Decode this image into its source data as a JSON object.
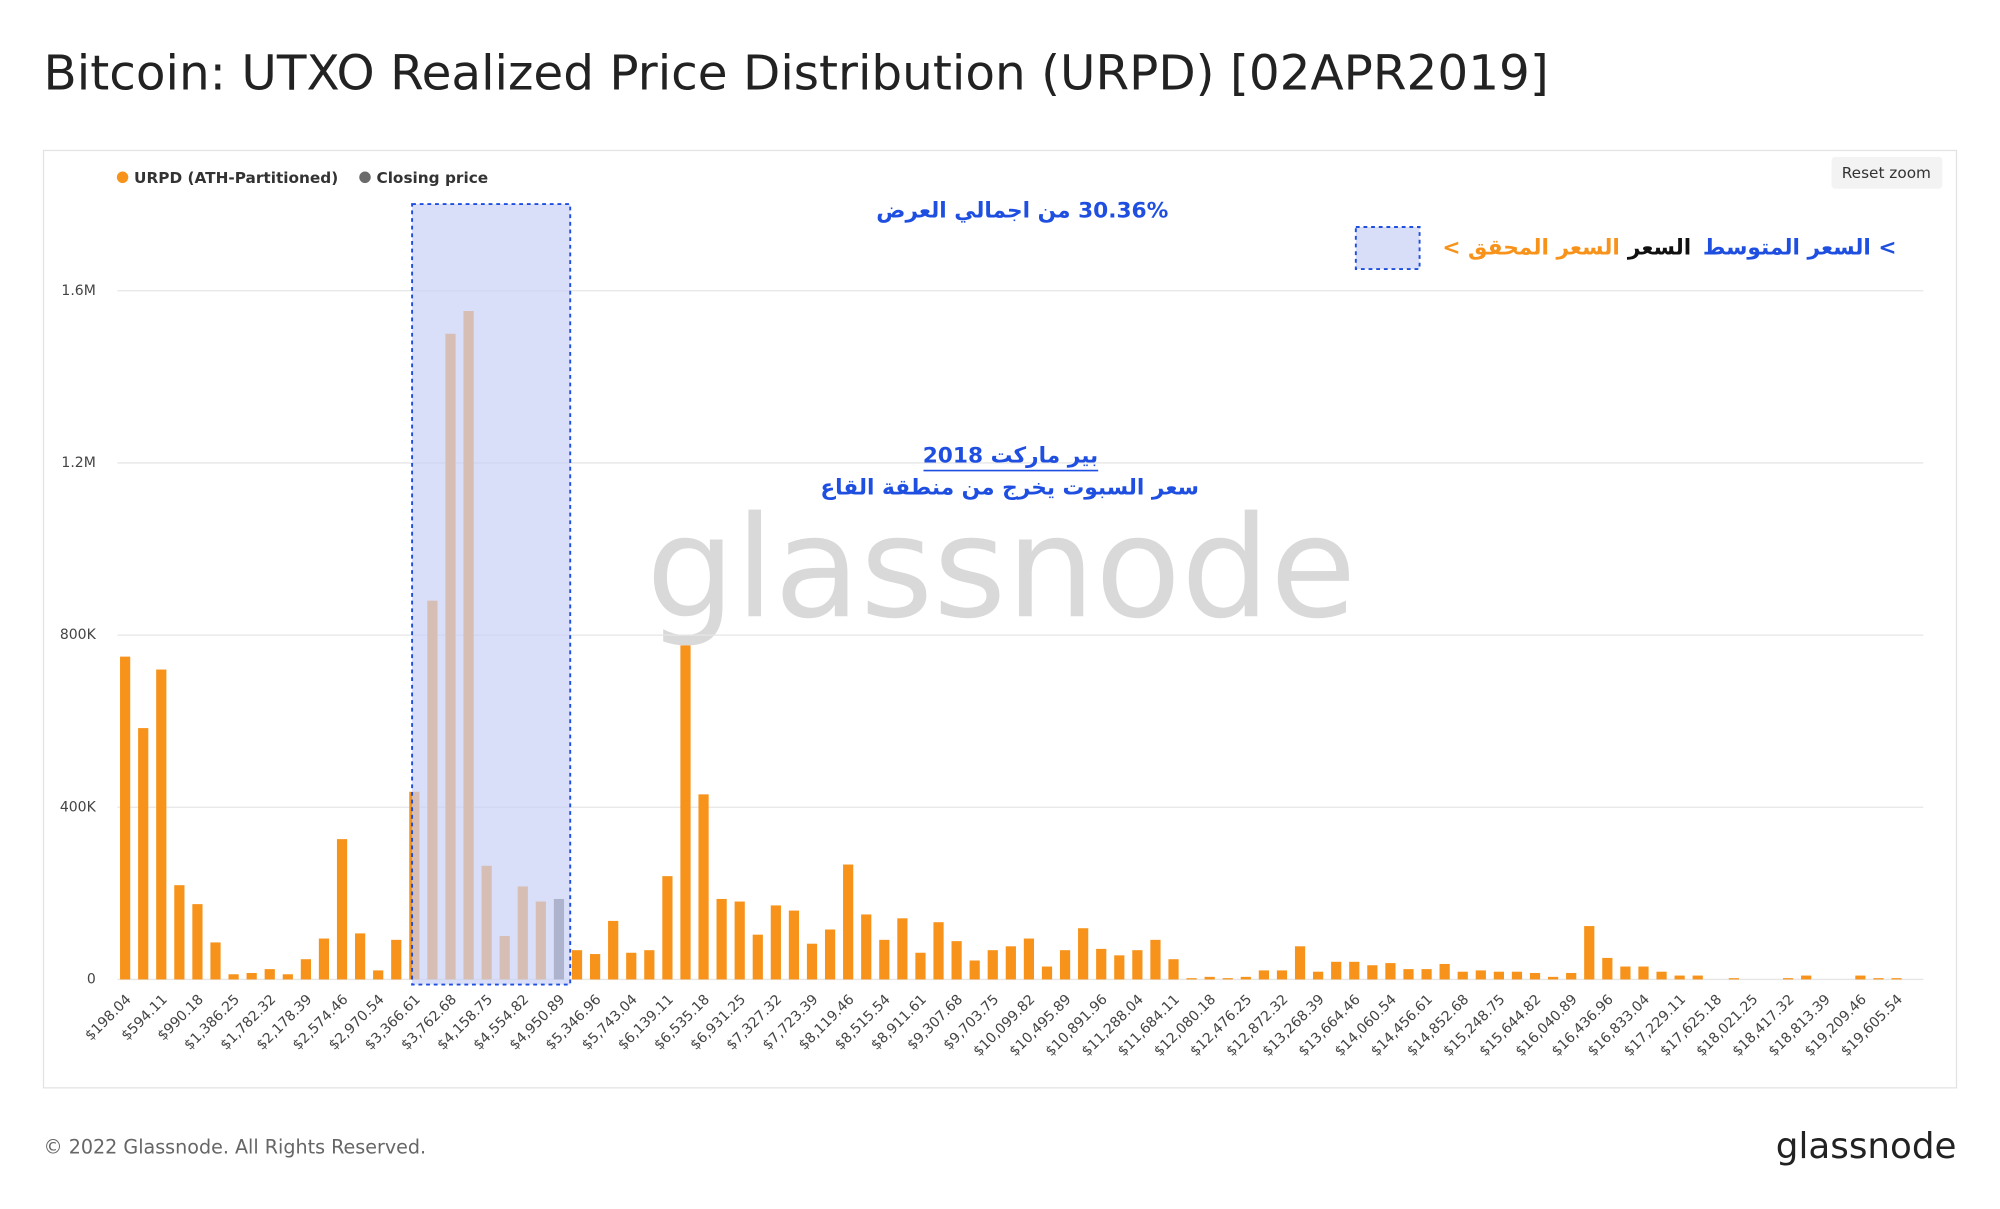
{
  "chart_data": {
    "type": "bar",
    "title": "Bitcoin: UTXO Realized Price Distribution (URPD) [02APR2019]",
    "categories": [
      "$198.04",
      null,
      "$594.11",
      null,
      "$990.18",
      null,
      "$1,386.25",
      null,
      "$1,782.32",
      null,
      "$2,178.39",
      null,
      "$2,574.46",
      null,
      "$2,970.54",
      null,
      "$3,366.61",
      null,
      "$3,762.68",
      null,
      "$4,158.75",
      null,
      "$4,554.82",
      null,
      "$4,950.89",
      null,
      "$5,346.96",
      null,
      "$5,743.04",
      null,
      "$6,139.11",
      null,
      "$6,535.18",
      null,
      "$6,931.25",
      null,
      "$7,327.32",
      null,
      "$7,723.39",
      null,
      "$8,119.46",
      null,
      "$8,515.54",
      null,
      "$8,911.61",
      null,
      "$9,307.68",
      null,
      "$9,703.75",
      null,
      "$10,099.82",
      null,
      "$10,495.89",
      null,
      "$10,891.96",
      null,
      "$11,288.04",
      null,
      "$11,684.11",
      null,
      "$12,080.18",
      null,
      "$12,476.25",
      null,
      "$12,872.32",
      null,
      "$13,268.39",
      null,
      "$13,664.46",
      null,
      "$14,060.54",
      null,
      "$14,456.61",
      null,
      "$14,852.68",
      null,
      "$15,248.75",
      null,
      "$15,644.82",
      null,
      "$16,040.89",
      null,
      "$16,436.96",
      null,
      "$16,833.04",
      null,
      "$17,229.11",
      null,
      "$17,625.18",
      null,
      "$18,021.25",
      null,
      "$18,417.32",
      null,
      "$18,813.39",
      null,
      "$19,209.46",
      null,
      "$19,605.54"
    ],
    "series": [
      {
        "name": "URPD (ATH-Partitioned)",
        "color": "#f7931a",
        "values": [
          750000,
          584000,
          720000,
          219000,
          175000,
          86000,
          12000,
          15000,
          24000,
          12000,
          47000,
          95000,
          326000,
          107000,
          21000,
          92000,
          436000,
          880000,
          1500000,
          1553000,
          264000,
          101000,
          216000,
          181000,
          null,
          68000,
          59000,
          136000,
          62000,
          68000,
          240000,
          776000,
          430000,
          187000,
          181000,
          104000,
          172000,
          160000,
          83000,
          116000,
          267000,
          151000,
          92000,
          142000,
          62000,
          133000,
          89000,
          44000,
          68000,
          77000,
          95000,
          30000,
          68000,
          119000,
          71000,
          56000,
          68000,
          92000,
          47000,
          3000,
          6000,
          3000,
          6000,
          21000,
          21000,
          77000,
          18000,
          41000,
          41000,
          33000,
          38000,
          24000,
          24000,
          36000,
          18000,
          21000,
          18000,
          18000,
          15000,
          6000,
          15000,
          124000,
          50000,
          30000,
          30000,
          18000,
          9000,
          9000,
          0,
          3000,
          0,
          0,
          3000,
          9000,
          0,
          0,
          9000,
          3000,
          3000
        ]
      },
      {
        "name": "Closing price",
        "color": "#6b6b6b",
        "values": [
          null,
          null,
          null,
          null,
          null,
          null,
          null,
          null,
          null,
          null,
          null,
          null,
          null,
          null,
          null,
          null,
          null,
          null,
          null,
          null,
          null,
          null,
          null,
          null,
          187000,
          null,
          null,
          null,
          null,
          null,
          null,
          null,
          null,
          null,
          null,
          null,
          null,
          null,
          null,
          null,
          null,
          null,
          null,
          null,
          null,
          null,
          null,
          null,
          null,
          null,
          null,
          null,
          null,
          null,
          null,
          null,
          null,
          null,
          null,
          null,
          null,
          null,
          null,
          null,
          null,
          null,
          null,
          null,
          null,
          null,
          null,
          null,
          null,
          null,
          null,
          null,
          null,
          null,
          null,
          null,
          null,
          null,
          null,
          null,
          null,
          null,
          null,
          null,
          null,
          null,
          null,
          null,
          null,
          null,
          null,
          null,
          null,
          null,
          null
        ]
      }
    ],
    "ylim": [
      0,
      1800000
    ],
    "yticks": [
      0,
      {
        "value": 400000,
        "label": "400K"
      },
      {
        "value": 800000,
        "label": "800K"
      },
      {
        "value": 1200000,
        "label": "1.2M"
      },
      {
        "value": 1600000,
        "label": "1.6M"
      }
    ],
    "grid": true,
    "legend": "top-left",
    "annotations": {
      "box_label": "30.36% من اجمالي العرض",
      "key_average": "السعر المتوسط <",
      "key_price": "السعر",
      "key_realized": "< السعر المحقق",
      "note_title": "2018 بير ماركت",
      "note_body": "سعر السبوت يخرج من منطقة القاع"
    },
    "watermark": "glassnode",
    "reset_button": "Reset zoom"
  },
  "footer": {
    "copyright": "© 2022 Glassnode. All Rights Reserved.",
    "logo": "glassnode"
  }
}
